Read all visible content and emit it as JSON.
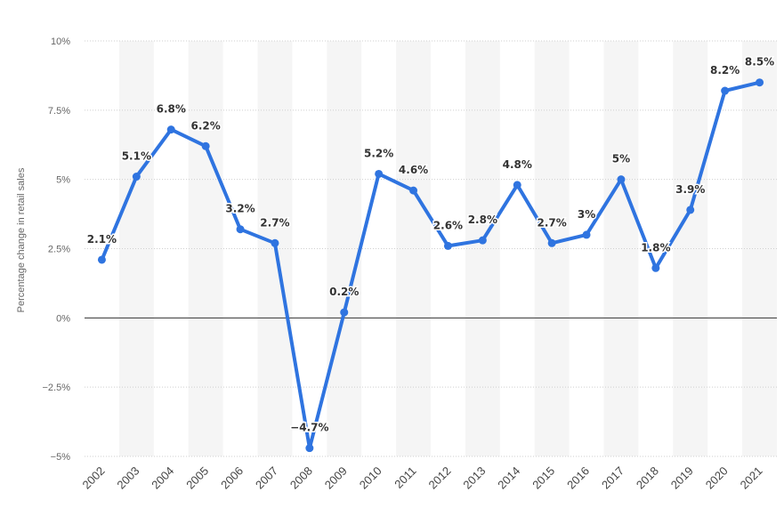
{
  "chart_data": {
    "type": "line",
    "ylabel": "Percentage change in retail sales",
    "xlabel": "",
    "categories": [
      "2002",
      "2003",
      "2004",
      "2005",
      "2006",
      "2007",
      "2008",
      "2009",
      "2010",
      "2011",
      "2012",
      "2013",
      "2014",
      "2015",
      "2016",
      "2017",
      "2018",
      "2019",
      "2020",
      "2021"
    ],
    "series": [
      {
        "values": [
          2.1,
          5.1,
          6.8,
          6.2,
          3.2,
          2.7,
          -4.7,
          0.2,
          5.2,
          4.6,
          2.6,
          2.8,
          4.8,
          2.7,
          3.0,
          5.0,
          1.8,
          3.9,
          8.2,
          8.5
        ],
        "labels": [
          "2.1%",
          "5.1%",
          "6.8%",
          "6.2%",
          "3.2%",
          "2.7%",
          "-4.7%",
          "0.2%",
          "5.2%",
          "4.6%",
          "2.6%",
          "2.8%",
          "4.8%",
          "2.7%",
          "3%",
          "5%",
          "1.8%",
          "3.9%",
          "8.2%",
          "8.5%"
        ]
      }
    ],
    "ylim": [
      -5,
      10
    ],
    "yticks": [
      10,
      7.5,
      5,
      2.5,
      0,
      -2.5,
      -5
    ],
    "ytick_labels": [
      "10%",
      "7.5%",
      "5%",
      "2.5%",
      "0%",
      "-2.5%",
      "-5%"
    ],
    "grid": "horizontal dotted",
    "zero_line": true,
    "alternating_column_bands": true,
    "line_color": "#2f74e0",
    "band_color": "#f5f5f5",
    "zero_line_color": "#333333"
  }
}
